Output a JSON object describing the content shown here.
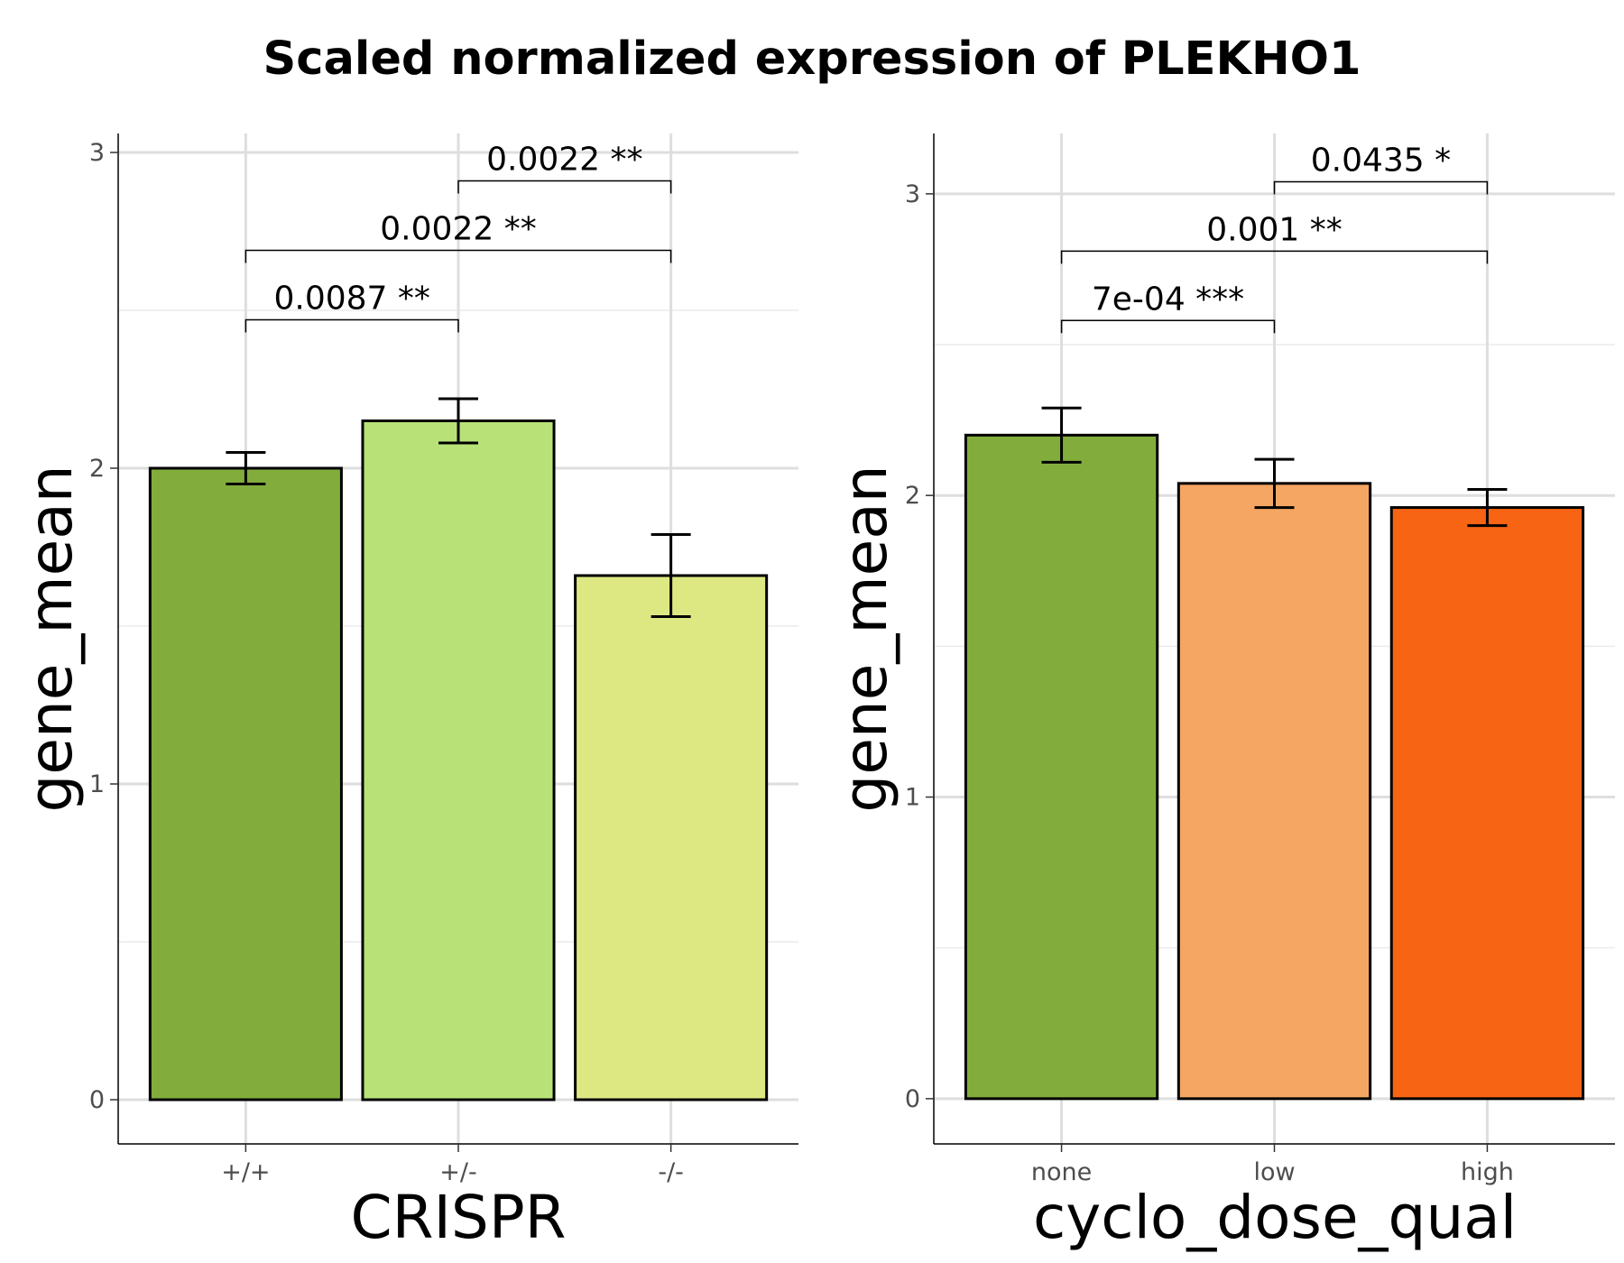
{
  "title": "Scaled normalized expression of PLEKHO1",
  "chart_data": [
    {
      "type": "bar",
      "xlabel": "CRISPR",
      "ylabel": "gene_mean",
      "categories": [
        "+/+",
        "+/-",
        "-/-"
      ],
      "values": [
        2.0,
        2.15,
        1.66
      ],
      "error_bars": [
        [
          1.95,
          2.05
        ],
        [
          2.08,
          2.22
        ],
        [
          1.53,
          1.79
        ]
      ],
      "colors": [
        "#82ad3c",
        "#b8e278",
        "#dde883"
      ],
      "ylim": [
        -0.14,
        3.06
      ],
      "yticks": [
        0,
        1,
        2,
        3
      ],
      "grid": true,
      "comparisons": [
        {
          "from": 0,
          "to": 1,
          "y": 2.47,
          "label": "0.0087 **"
        },
        {
          "from": 0,
          "to": 2,
          "y": 2.69,
          "label": "0.0022 **"
        },
        {
          "from": 1,
          "to": 2,
          "y": 2.91,
          "label": "0.0022 **"
        }
      ]
    },
    {
      "type": "bar",
      "xlabel": "cyclo_dose_qual",
      "ylabel": "gene_mean",
      "categories": [
        "none",
        "low",
        "high"
      ],
      "values": [
        2.2,
        2.04,
        1.96
      ],
      "error_bars": [
        [
          2.11,
          2.29
        ],
        [
          1.96,
          2.12
        ],
        [
          1.9,
          2.02
        ]
      ],
      "colors": [
        "#82ad3c",
        "#f5a663",
        "#f76413"
      ],
      "ylim": [
        -0.15,
        3.2
      ],
      "yticks": [
        0,
        1,
        2,
        3
      ],
      "grid": true,
      "comparisons": [
        {
          "from": 0,
          "to": 1,
          "y": 2.58,
          "label": "7e-04 ***"
        },
        {
          "from": 0,
          "to": 2,
          "y": 2.81,
          "label": "0.001 **"
        },
        {
          "from": 1,
          "to": 2,
          "y": 3.04,
          "label": "0.0435 *"
        }
      ]
    }
  ]
}
